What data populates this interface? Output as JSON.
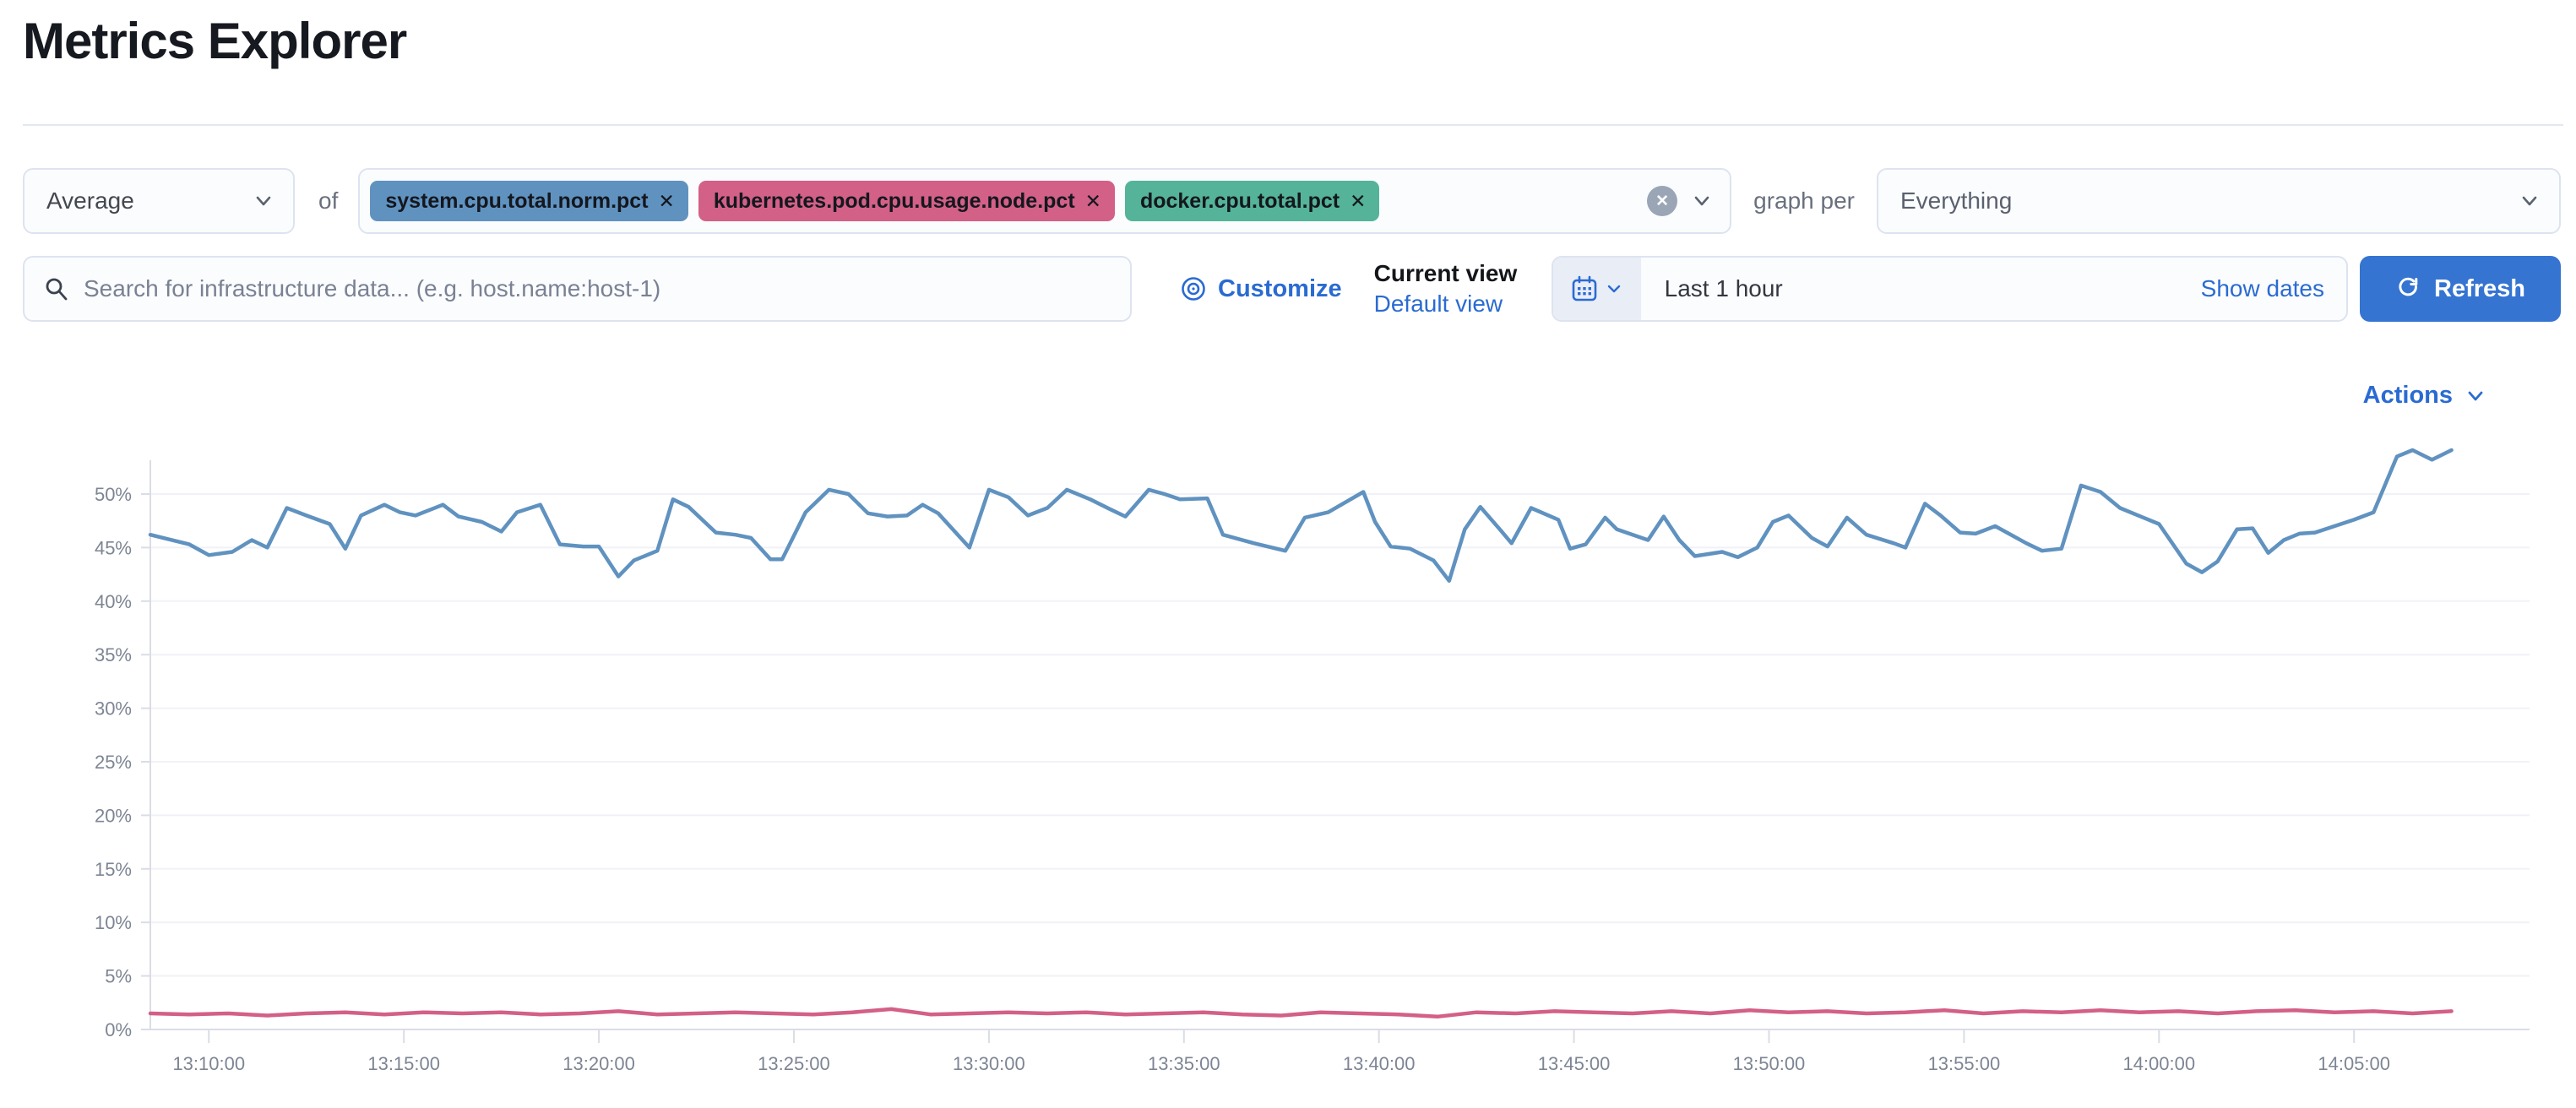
{
  "page": {
    "title": "Metrics Explorer"
  },
  "toolbar": {
    "aggregation": {
      "value": "Average"
    },
    "of_label": "of",
    "metrics": [
      {
        "label": "system.cpu.total.norm.pct",
        "color": "#6092C0"
      },
      {
        "label": "kubernetes.pod.cpu.usage.node.pct",
        "color": "#D36086"
      },
      {
        "label": "docker.cpu.total.pct",
        "color": "#54B399"
      }
    ],
    "graph_per_label": "graph per",
    "group_by": {
      "value": "Everything"
    }
  },
  "searchbar": {
    "placeholder": "Search for infrastructure data... (e.g. host.name:host-1)"
  },
  "view_controls": {
    "customize_label": "Customize",
    "current_view_label": "Current view",
    "view_name": "Default view"
  },
  "timepicker": {
    "duration_label": "Last 1 hour",
    "show_dates_label": "Show dates",
    "refresh_label": "Refresh"
  },
  "actions": {
    "label": "Actions"
  },
  "chart_data": {
    "type": "line",
    "title": "",
    "xlabel": "",
    "ylabel": "",
    "y_unit": "%",
    "ylim": [
      0,
      50
    ],
    "y_ticks": [
      0,
      5,
      10,
      15,
      20,
      25,
      30,
      35,
      40,
      45,
      50
    ],
    "grid": "horizontal",
    "legend_position": "none",
    "x_total_min": 61,
    "x_ticks": [
      {
        "label": "13:10:00",
        "min": 1.5
      },
      {
        "label": "13:15:00",
        "min": 6.5
      },
      {
        "label": "13:20:00",
        "min": 11.5
      },
      {
        "label": "13:25:00",
        "min": 16.5
      },
      {
        "label": "13:30:00",
        "min": 21.5
      },
      {
        "label": "13:35:00",
        "min": 26.5
      },
      {
        "label": "13:40:00",
        "min": 31.5
      },
      {
        "label": "13:45:00",
        "min": 36.5
      },
      {
        "label": "13:50:00",
        "min": 41.5
      },
      {
        "label": "13:55:00",
        "min": 46.5
      },
      {
        "label": "14:00:00",
        "min": 51.5
      },
      {
        "label": "14:05:00",
        "min": 56.5
      }
    ],
    "series": [
      {
        "name": "system.cpu.total.norm.pct",
        "color": "#6092C0",
        "points": [
          [
            0,
            46.2
          ],
          [
            1,
            45.3
          ],
          [
            1.5,
            44.3
          ],
          [
            2.1,
            44.6
          ],
          [
            2.6,
            45.7
          ],
          [
            3,
            45.0
          ],
          [
            3.5,
            48.7
          ],
          [
            4,
            48.0
          ],
          [
            4.6,
            47.2
          ],
          [
            5,
            44.9
          ],
          [
            5.4,
            48.0
          ],
          [
            6,
            49.0
          ],
          [
            6.4,
            48.3
          ],
          [
            6.8,
            48.0
          ],
          [
            7.5,
            49.0
          ],
          [
            7.9,
            47.9
          ],
          [
            8.5,
            47.4
          ],
          [
            9,
            46.5
          ],
          [
            9.4,
            48.3
          ],
          [
            10,
            49.0
          ],
          [
            10.5,
            45.3
          ],
          [
            11.1,
            45.1
          ],
          [
            11.5,
            45.1
          ],
          [
            12,
            42.3
          ],
          [
            12.4,
            43.8
          ],
          [
            13,
            44.7
          ],
          [
            13.4,
            49.5
          ],
          [
            13.8,
            48.8
          ],
          [
            14.5,
            46.4
          ],
          [
            15,
            46.2
          ],
          [
            15.4,
            45.9
          ],
          [
            15.9,
            43.9
          ],
          [
            16.2,
            43.9
          ],
          [
            16.8,
            48.3
          ],
          [
            17.4,
            50.4
          ],
          [
            17.9,
            50.0
          ],
          [
            18.4,
            48.2
          ],
          [
            18.9,
            47.9
          ],
          [
            19.4,
            48.0
          ],
          [
            19.8,
            49.0
          ],
          [
            20.2,
            48.2
          ],
          [
            21,
            45.0
          ],
          [
            21.5,
            50.4
          ],
          [
            22,
            49.7
          ],
          [
            22.5,
            48.0
          ],
          [
            23,
            48.7
          ],
          [
            23.5,
            50.4
          ],
          [
            24.1,
            49.5
          ],
          [
            24.6,
            48.6
          ],
          [
            25,
            47.9
          ],
          [
            25.6,
            50.4
          ],
          [
            26,
            50.0
          ],
          [
            26.4,
            49.5
          ],
          [
            27.1,
            49.6
          ],
          [
            27.5,
            46.2
          ],
          [
            28.3,
            45.4
          ],
          [
            29.1,
            44.7
          ],
          [
            29.6,
            47.8
          ],
          [
            30.2,
            48.3
          ],
          [
            31.1,
            50.2
          ],
          [
            31.4,
            47.4
          ],
          [
            31.8,
            45.1
          ],
          [
            32.3,
            44.9
          ],
          [
            32.9,
            43.8
          ],
          [
            33.3,
            41.9
          ],
          [
            33.7,
            46.7
          ],
          [
            34.1,
            48.8
          ],
          [
            34.6,
            46.7
          ],
          [
            34.9,
            45.4
          ],
          [
            35.4,
            48.7
          ],
          [
            36.1,
            47.6
          ],
          [
            36.4,
            44.9
          ],
          [
            36.8,
            45.3
          ],
          [
            37.3,
            47.8
          ],
          [
            37.6,
            46.7
          ],
          [
            38.4,
            45.7
          ],
          [
            38.8,
            47.9
          ],
          [
            39.2,
            45.7
          ],
          [
            39.6,
            44.2
          ],
          [
            40.3,
            44.6
          ],
          [
            40.7,
            44.1
          ],
          [
            41.2,
            45.0
          ],
          [
            41.6,
            47.4
          ],
          [
            42,
            48.0
          ],
          [
            42.6,
            45.9
          ],
          [
            43,
            45.1
          ],
          [
            43.5,
            47.8
          ],
          [
            44,
            46.2
          ],
          [
            44.7,
            45.4
          ],
          [
            45,
            45.0
          ],
          [
            45.5,
            49.1
          ],
          [
            45.9,
            48.0
          ],
          [
            46.4,
            46.4
          ],
          [
            46.8,
            46.3
          ],
          [
            47.3,
            47.0
          ],
          [
            48.1,
            45.4
          ],
          [
            48.5,
            44.7
          ],
          [
            49,
            44.9
          ],
          [
            49.5,
            50.8
          ],
          [
            50,
            50.2
          ],
          [
            50.5,
            48.7
          ],
          [
            51.1,
            47.8
          ],
          [
            51.5,
            47.2
          ],
          [
            52.2,
            43.5
          ],
          [
            52.6,
            42.7
          ],
          [
            53,
            43.7
          ],
          [
            53.5,
            46.7
          ],
          [
            53.9,
            46.8
          ],
          [
            54.3,
            44.5
          ],
          [
            54.7,
            45.7
          ],
          [
            55.1,
            46.3
          ],
          [
            55.5,
            46.4
          ],
          [
            56,
            47.0
          ],
          [
            56.5,
            47.6
          ],
          [
            57,
            48.3
          ],
          [
            57.6,
            53.5
          ],
          [
            58,
            54.1
          ],
          [
            58.5,
            53.2
          ],
          [
            59,
            54.1
          ]
        ]
      },
      {
        "name": "kubernetes.pod.cpu.usage.node.pct",
        "color": "#D36086",
        "points": [
          [
            0,
            1.5
          ],
          [
            1,
            1.4
          ],
          [
            2,
            1.5
          ],
          [
            3,
            1.3
          ],
          [
            4,
            1.5
          ],
          [
            5,
            1.6
          ],
          [
            6,
            1.4
          ],
          [
            7,
            1.6
          ],
          [
            8,
            1.5
          ],
          [
            9,
            1.6
          ],
          [
            10,
            1.4
          ],
          [
            11,
            1.5
          ],
          [
            12,
            1.7
          ],
          [
            13,
            1.4
          ],
          [
            14,
            1.5
          ],
          [
            15,
            1.6
          ],
          [
            16,
            1.5
          ],
          [
            17,
            1.4
          ],
          [
            18,
            1.6
          ],
          [
            19,
            1.9
          ],
          [
            20,
            1.4
          ],
          [
            21,
            1.5
          ],
          [
            22,
            1.6
          ],
          [
            23,
            1.5
          ],
          [
            24,
            1.6
          ],
          [
            25,
            1.4
          ],
          [
            26,
            1.5
          ],
          [
            27,
            1.6
          ],
          [
            28,
            1.4
          ],
          [
            29,
            1.3
          ],
          [
            30,
            1.6
          ],
          [
            31,
            1.5
          ],
          [
            32,
            1.4
          ],
          [
            33,
            1.2
          ],
          [
            34,
            1.6
          ],
          [
            35,
            1.5
          ],
          [
            36,
            1.7
          ],
          [
            37,
            1.6
          ],
          [
            38,
            1.5
          ],
          [
            39,
            1.7
          ],
          [
            40,
            1.5
          ],
          [
            41,
            1.8
          ],
          [
            42,
            1.6
          ],
          [
            43,
            1.7
          ],
          [
            44,
            1.5
          ],
          [
            45,
            1.6
          ],
          [
            46,
            1.8
          ],
          [
            47,
            1.5
          ],
          [
            48,
            1.7
          ],
          [
            49,
            1.6
          ],
          [
            50,
            1.8
          ],
          [
            51,
            1.6
          ],
          [
            52,
            1.7
          ],
          [
            53,
            1.5
          ],
          [
            54,
            1.7
          ],
          [
            55,
            1.8
          ],
          [
            56,
            1.6
          ],
          [
            57,
            1.7
          ],
          [
            58,
            1.5
          ],
          [
            59,
            1.7
          ]
        ]
      }
    ]
  }
}
